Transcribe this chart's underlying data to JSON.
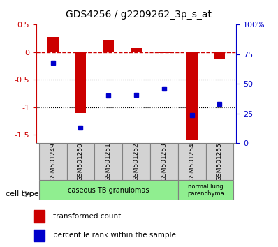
{
  "title": "GDS4256 / g2209262_3p_s_at",
  "samples": [
    "GSM501249",
    "GSM501250",
    "GSM501251",
    "GSM501252",
    "GSM501253",
    "GSM501254",
    "GSM501255"
  ],
  "transformed_count": [
    0.28,
    -1.1,
    0.21,
    0.08,
    -0.02,
    -1.58,
    -0.12
  ],
  "percentile_rank": [
    68,
    13,
    40,
    41,
    46,
    24,
    33
  ],
  "ylim_left": [
    -1.65,
    0.5
  ],
  "ylim_right": [
    0,
    100
  ],
  "yticks_left": [
    0.5,
    0.0,
    -0.5,
    -1.0,
    -1.5
  ],
  "ytick_labels_left": [
    "0.5",
    "0",
    "-0.5",
    "-1",
    "-1.5"
  ],
  "yticks_right": [
    100,
    75,
    50,
    25,
    0
  ],
  "ytick_labels_right": [
    "100%",
    "75",
    "50",
    "25",
    "0"
  ],
  "hline_y": 0.0,
  "dotted_hlines": [
    -0.5,
    -1.0
  ],
  "bar_color": "#cc0000",
  "dot_color": "#0000cc",
  "bar_width": 0.4,
  "legend_bar_label": "transformed count",
  "legend_dot_label": "percentile rank within the sample",
  "cell_type_label": "cell type",
  "ct1_label": "caseous TB granulomas",
  "ct2_label": "normal lung\nparenchyma",
  "ct_color": "#90ee90",
  "sample_box_color": "#d3d3d3",
  "figsize": [
    3.98,
    3.54
  ],
  "dpi": 100
}
